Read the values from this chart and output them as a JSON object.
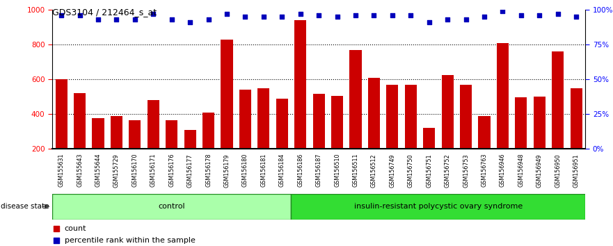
{
  "title": "GDS3104 / 212464_s_at",
  "samples": [
    "GSM155631",
    "GSM155643",
    "GSM155644",
    "GSM155729",
    "GSM156170",
    "GSM156171",
    "GSM156176",
    "GSM156177",
    "GSM156178",
    "GSM156179",
    "GSM156180",
    "GSM156181",
    "GSM156184",
    "GSM156186",
    "GSM156187",
    "GSM156510",
    "GSM156511",
    "GSM156512",
    "GSM156749",
    "GSM156750",
    "GSM156751",
    "GSM156752",
    "GSM156753",
    "GSM156763",
    "GSM156946",
    "GSM156948",
    "GSM156949",
    "GSM156950",
    "GSM156951"
  ],
  "counts": [
    600,
    520,
    375,
    390,
    365,
    480,
    365,
    310,
    410,
    830,
    540,
    550,
    490,
    940,
    515,
    505,
    770,
    610,
    570,
    570,
    320,
    625,
    570,
    390,
    810,
    495,
    500,
    760,
    550
  ],
  "percentile_ranks": [
    96,
    96,
    93,
    93,
    93,
    97,
    93,
    91,
    93,
    97,
    95,
    95,
    95,
    97,
    96,
    95,
    96,
    96,
    96,
    96,
    91,
    93,
    93,
    95,
    99,
    96,
    96,
    97,
    95
  ],
  "group_labels": [
    "control",
    "insulin-resistant polycystic ovary syndrome"
  ],
  "group_boundary": 13,
  "bar_color": "#CC0000",
  "dot_color": "#0000BB",
  "ticklabel_bg": "#C8C8C8",
  "group1_color": "#AAFFAA",
  "group2_color": "#33DD33",
  "group_edge_color": "#228B22",
  "ylim_left": [
    200,
    1000
  ],
  "ylim_right": [
    0,
    100
  ],
  "yticks_left": [
    200,
    400,
    600,
    800,
    1000
  ],
  "yticks_right": [
    0,
    25,
    50,
    75,
    100
  ],
  "grid_values": [
    400,
    600,
    800
  ],
  "legend_count_label": "count",
  "legend_percentile_label": "percentile rank within the sample",
  "disease_state_label": "disease state"
}
